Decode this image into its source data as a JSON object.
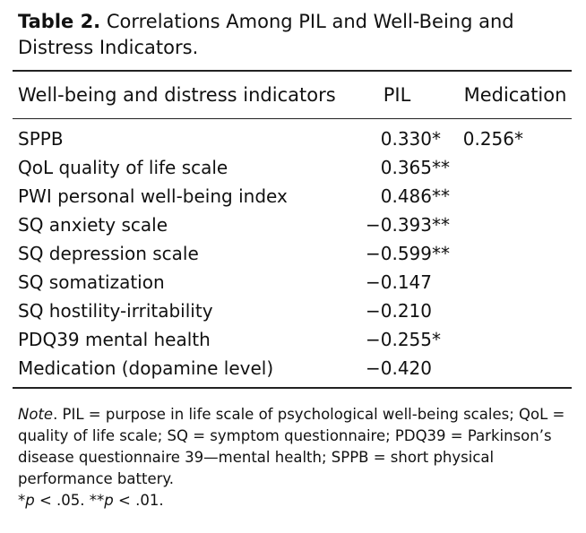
{
  "table": {
    "label": "Table 2.",
    "caption": "Correlations Among PIL and Well-Being and Distress Indicators.",
    "headers": [
      "Well-being and distress indicators",
      "PIL",
      "Medication"
    ],
    "rows": [
      {
        "indicator": "SPPB",
        "pil": "0.330",
        "pil_sig": "*",
        "med": "0.256",
        "med_sig": "*"
      },
      {
        "indicator": "QoL quality of life scale",
        "pil": "0.365",
        "pil_sig": "**",
        "med": "",
        "med_sig": ""
      },
      {
        "indicator": "PWI personal well-being index",
        "pil": "0.486",
        "pil_sig": "**",
        "med": "",
        "med_sig": ""
      },
      {
        "indicator": "SQ anxiety scale",
        "pil": "−0.393",
        "pil_sig": "**",
        "med": "",
        "med_sig": ""
      },
      {
        "indicator": "SQ depression scale",
        "pil": "−0.599",
        "pil_sig": "**",
        "med": "",
        "med_sig": ""
      },
      {
        "indicator": "SQ somatization",
        "pil": "−0.147",
        "pil_sig": "",
        "med": "",
        "med_sig": ""
      },
      {
        "indicator": "SQ hostility-irritability",
        "pil": "−0.210",
        "pil_sig": "",
        "med": "",
        "med_sig": ""
      },
      {
        "indicator": "PDQ39 mental health",
        "pil": "−0.255",
        "pil_sig": "*",
        "med": "",
        "med_sig": ""
      },
      {
        "indicator": "Medication (dopamine level)",
        "pil": "−0.420",
        "pil_sig": "",
        "med": "",
        "med_sig": ""
      }
    ]
  },
  "note": {
    "label": "Note",
    "text": ". PIL = purpose in life scale of psychological well-being scales; QoL = quality of life scale; SQ = symptom questionnaire; PDQ39 = Parkinson’s disease questionnaire 39—mental health; SPPB = short physical performance battery.",
    "sig1_star": "*",
    "sig1_p": "p",
    "sig1_rest": " < .05. ",
    "sig2_star": "**",
    "sig2_p": "p",
    "sig2_rest": " < .01."
  }
}
